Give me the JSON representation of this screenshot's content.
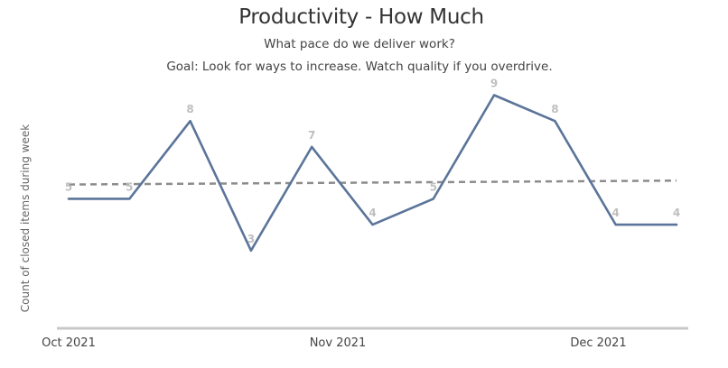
{
  "chart_data": {
    "type": "line",
    "title": "Productivity - How Much",
    "subtitle": "What pace do we deliver work?",
    "subtitle2": "Goal: Look for ways to increase. Watch quality if you overdrive.",
    "xlabel": "",
    "ylabel": "Count of closed items during week",
    "x": [
      "2021-10-01",
      "2021-10-08",
      "2021-10-15",
      "2021-10-22",
      "2021-10-29",
      "2021-11-05",
      "2021-11-12",
      "2021-11-19",
      "2021-11-26",
      "2021-12-03",
      "2021-12-10"
    ],
    "xticks": [
      {
        "label": "Oct 2021",
        "date": "2021-10-01"
      },
      {
        "label": "Nov 2021",
        "date": "2021-11-01"
      },
      {
        "label": "Dec 2021",
        "date": "2021-12-01"
      }
    ],
    "series": [
      {
        "values": [
          5,
          5,
          8,
          3,
          7,
          4,
          5,
          9,
          8,
          4,
          4
        ],
        "color": "#5b7499",
        "data_labels": true
      }
    ],
    "trend": {
      "style": "dashed",
      "color": "#8c8c8c",
      "start": 5.55,
      "end": 5.7
    },
    "ylim": [
      0,
      11
    ],
    "grid": false,
    "legend": "none"
  }
}
